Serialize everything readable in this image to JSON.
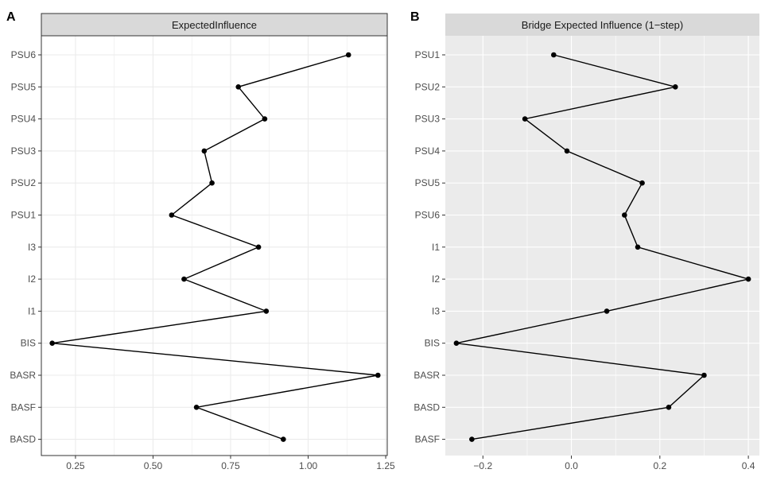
{
  "chart_data": [
    {
      "type": "line",
      "panel_label": "A",
      "strip_title": "ExpectedInfluence",
      "theme": "bw",
      "categories": [
        "PSU6",
        "PSU5",
        "PSU4",
        "PSU3",
        "PSU2",
        "PSU1",
        "I3",
        "I2",
        "I1",
        "BIS",
        "BASR",
        "BASF",
        "BASD"
      ],
      "values": [
        1.13,
        0.775,
        0.86,
        0.665,
        0.69,
        0.56,
        0.84,
        0.6,
        0.865,
        0.175,
        1.225,
        0.64,
        0.92
      ],
      "xlim": [
        0.14,
        1.255
      ],
      "xticks": [
        0.25,
        0.5,
        0.75,
        1.0,
        1.25
      ],
      "xtick_labels": [
        "0.25",
        "0.50",
        "0.75",
        "1.00",
        "1.25"
      ],
      "xlabel": "",
      "ylabel": ""
    },
    {
      "type": "line",
      "panel_label": "B",
      "strip_title": "Bridge Expected Influence (1−step)",
      "theme": "grey",
      "categories": [
        "PSU1",
        "PSU2",
        "PSU3",
        "PSU4",
        "PSU5",
        "PSU6",
        "I1",
        "I2",
        "I3",
        "BIS",
        "BASR",
        "BASD",
        "BASF"
      ],
      "values": [
        -0.04,
        0.235,
        -0.105,
        -0.01,
        0.16,
        0.12,
        0.15,
        0.4,
        0.08,
        -0.26,
        0.3,
        0.22,
        -0.225
      ],
      "xlim": [
        -0.285,
        0.425
      ],
      "xticks": [
        -0.2,
        0.0,
        0.2,
        0.4
      ],
      "xtick_labels": [
        "−0.2",
        "0.0",
        "0.2",
        "0.4"
      ],
      "xlabel": "",
      "ylabel": ""
    }
  ],
  "colors": {
    "line": "#000000",
    "grid": "#ebebeb",
    "grey_panel": "#ebebeb",
    "strip": "#d9d9d9",
    "border": "#333333"
  }
}
